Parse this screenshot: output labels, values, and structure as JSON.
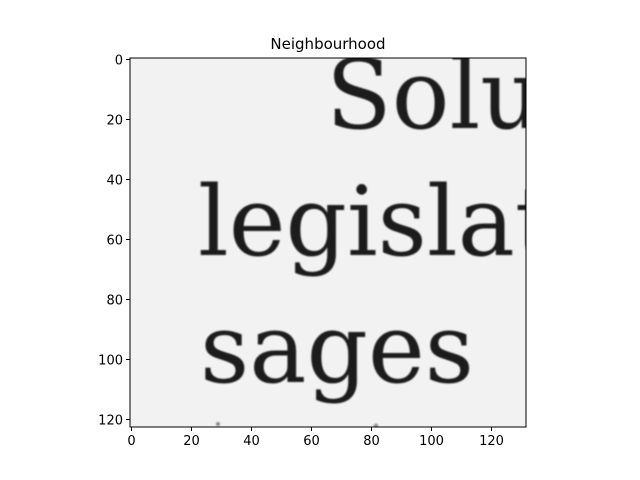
{
  "figure": {
    "title": "Neighbourhood",
    "x_ticks": [
      "0",
      "20",
      "40",
      "60",
      "80",
      "100",
      "120"
    ],
    "y_ticks": [
      "0",
      "20",
      "40",
      "60",
      "80",
      "100",
      "120"
    ],
    "x_range": [
      0,
      131
    ],
    "y_range": [
      0,
      122
    ]
  },
  "image_words": {
    "line1": "Solu",
    "line2": "legislat",
    "line3": "sages"
  },
  "colors": {
    "background": "#f2f2f2",
    "ink": "#1a1a1a",
    "axes": "#000000"
  }
}
